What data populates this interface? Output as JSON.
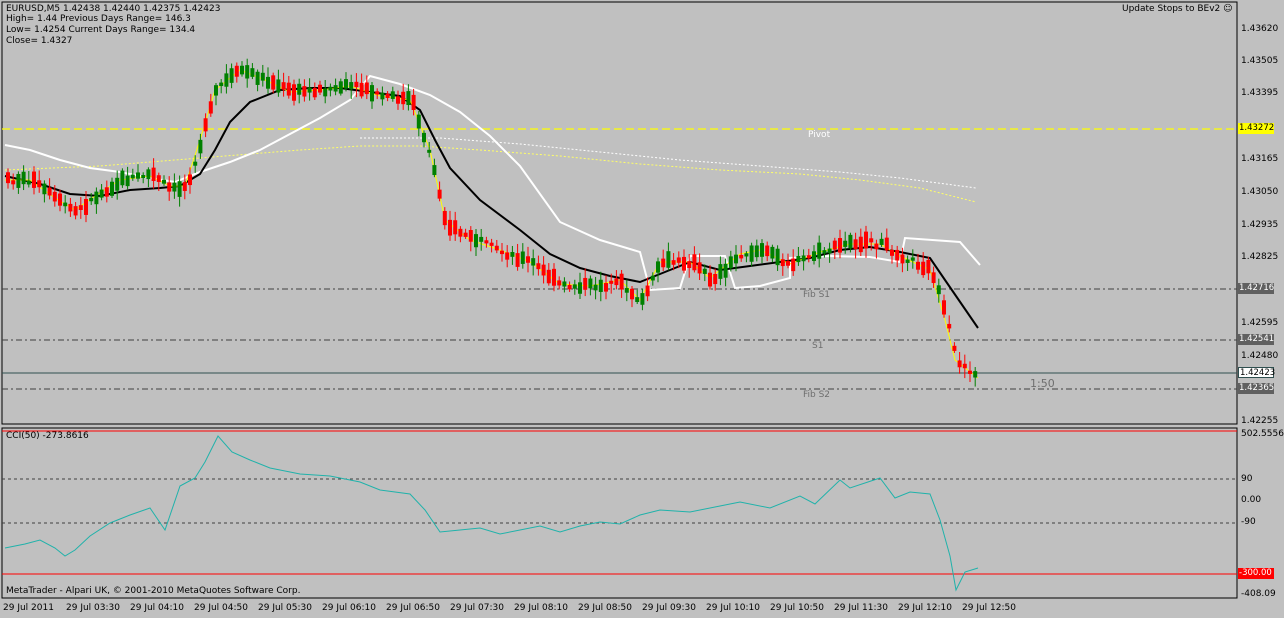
{
  "header": {
    "line1": "EURUSD,M5  1.42438 1.42440 1.42375 1.42423",
    "line2": "High= 1.44    Previous Days Range= 146.3",
    "line3": "Low= 1.4254    Current Days Range= 134.4",
    "line4": "Close= 1.4327"
  },
  "button": {
    "label": "Update Stops to BEv2 ☺"
  },
  "price_axis": [
    "1.43620",
    "1.43505",
    "1.43395",
    "1.43165",
    "1.43050",
    "1.42935",
    "1.42825",
    "1.42595",
    "1.42480",
    "1.42255"
  ],
  "price_tags": {
    "pivot": "1.43272",
    "fib_s1": "1.42716",
    "s1": "1.42541",
    "current": "1.42423",
    "fib_s2": "1.42365"
  },
  "levels": {
    "pivot": "Pivot",
    "fib_s1": "Fib S1",
    "s1": "S1",
    "fib_s2": "Fib S2"
  },
  "timer": "1:50",
  "cci": {
    "label": "CCI(50) -273.8616",
    "ticks": [
      "502.5556",
      "90",
      "0.00",
      "-90",
      "-408.09"
    ],
    "tag": "-300.00"
  },
  "copyright": "MetaTrader - Alpari UK, © 2001-2010 MetaQuotes Software Corp.",
  "time_axis": [
    "29 Jul 2011",
    "29 Jul 03:30",
    "29 Jul 04:10",
    "29 Jul 04:50",
    "29 Jul 05:30",
    "29 Jul 06:10",
    "29 Jul 06:50",
    "29 Jul 07:30",
    "29 Jul 08:10",
    "29 Jul 08:50",
    "29 Jul 09:30",
    "29 Jul 10:10",
    "29 Jul 10:50",
    "29 Jul 11:30",
    "29 Jul 12:10",
    "29 Jul 12:50"
  ],
  "colors": {
    "background": "#c0c0c0",
    "bull": "#008000",
    "bear": "#ff0000",
    "pivot_line": "#ffff00",
    "cci_line": "#20b2aa",
    "cci_limit": "#ff0000"
  }
}
